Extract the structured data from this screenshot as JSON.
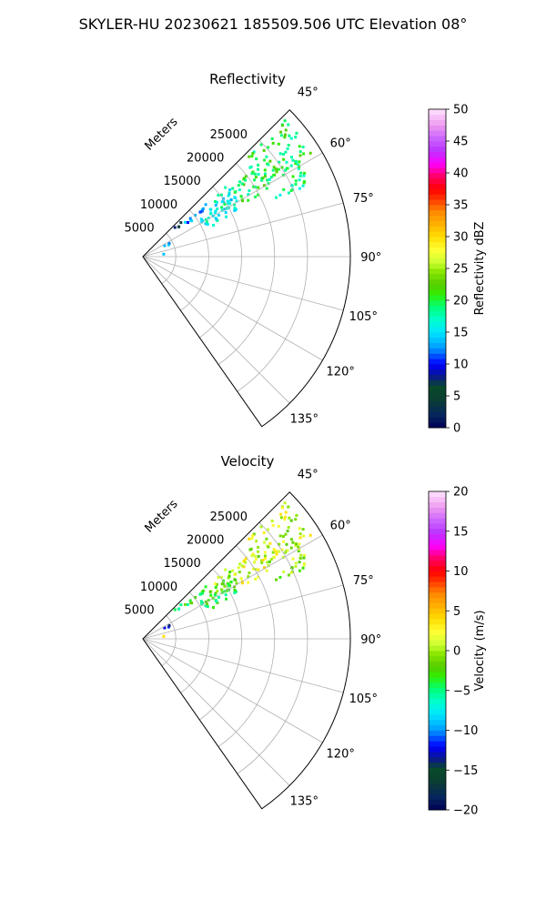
{
  "figure": {
    "suptitle": "SKYLER-HU  20230621  185509.506 UTC Elevation 08°"
  },
  "chart_data": [
    {
      "type": "heatmap",
      "subtype": "polar-sector-ppi",
      "title": "Reflectivity",
      "radial_label": "Meters",
      "r_ticks": [
        5000,
        10000,
        15000,
        20000,
        25000
      ],
      "r_max": 31500,
      "azimuth_range_deg": [
        45,
        145
      ],
      "azimuth_ticks": [
        "45°",
        "60°",
        "75°",
        "90°",
        "105°",
        "120°",
        "135°"
      ],
      "grid": true,
      "colorbar": {
        "label": "Reflectivity dBZ",
        "range": [
          0,
          50
        ],
        "ticks": [
          "0",
          "5",
          "10",
          "15",
          "20",
          "25",
          "30",
          "35",
          "40",
          "45",
          "50"
        ]
      },
      "echo_regions": [
        {
          "az": [
            46,
            60
          ],
          "r": [
            21000,
            30000
          ],
          "value": 20
        },
        {
          "az": [
            58,
            67
          ],
          "r": [
            22000,
            28000
          ],
          "value": 18
        },
        {
          "az": [
            52,
            63
          ],
          "r": [
            17000,
            22000
          ],
          "value": 20
        },
        {
          "az": [
            50,
            60
          ],
          "r": [
            12000,
            17000
          ],
          "value": 16
        },
        {
          "az": [
            57,
            66
          ],
          "r": [
            10000,
            16000
          ],
          "value": 17
        },
        {
          "az": [
            49,
            54
          ],
          "r": [
            8000,
            12000
          ],
          "value": 13
        },
        {
          "az": [
            47,
            51
          ],
          "r": [
            6500,
            8500
          ],
          "value": 8
        },
        {
          "az": [
            60,
            66
          ],
          "r": [
            3500,
            4500
          ],
          "value": 15
        },
        {
          "az": [
            83,
            86
          ],
          "r": [
            2800,
            3400
          ],
          "value": 16
        }
      ]
    },
    {
      "type": "heatmap",
      "subtype": "polar-sector-ppi",
      "title": "Velocity",
      "radial_label": "Meters",
      "r_ticks": [
        5000,
        10000,
        15000,
        20000,
        25000
      ],
      "r_max": 31500,
      "azimuth_range_deg": [
        45,
        145
      ],
      "azimuth_ticks": [
        "45°",
        "60°",
        "75°",
        "90°",
        "105°",
        "120°",
        "135°"
      ],
      "grid": true,
      "colorbar": {
        "label": "Velocity (m/s)",
        "range": [
          -20,
          20
        ],
        "ticks": [
          "−20",
          "−15",
          "−10",
          "−5",
          "0",
          "5",
          "10",
          "15",
          "20"
        ]
      },
      "echo_regions": [
        {
          "az": [
            46,
            60
          ],
          "r": [
            21000,
            30000
          ],
          "value": 1
        },
        {
          "az": [
            58,
            67
          ],
          "r": [
            22000,
            28000
          ],
          "value": -1
        },
        {
          "az": [
            52,
            63
          ],
          "r": [
            17000,
            22000
          ],
          "value": 2
        },
        {
          "az": [
            50,
            60
          ],
          "r": [
            12000,
            17000
          ],
          "value": -1
        },
        {
          "az": [
            57,
            66
          ],
          "r": [
            10000,
            16000
          ],
          "value": -3
        },
        {
          "az": [
            49,
            54
          ],
          "r": [
            8000,
            12000
          ],
          "value": -3
        },
        {
          "az": [
            47,
            51
          ],
          "r": [
            6500,
            8500
          ],
          "value": -4
        },
        {
          "az": [
            60,
            66
          ],
          "r": [
            3500,
            4500
          ],
          "value": -11
        },
        {
          "az": [
            83,
            86
          ],
          "r": [
            2800,
            3400
          ],
          "value": 6
        }
      ]
    }
  ]
}
